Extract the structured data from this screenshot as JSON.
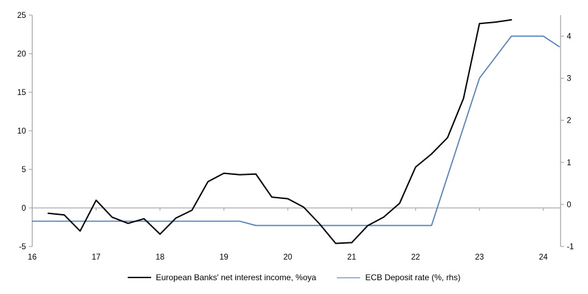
{
  "chart_data": {
    "type": "line",
    "title": "",
    "x_axis": {
      "min": 16,
      "max": 24.27,
      "ticks": [
        16,
        17,
        18,
        19,
        20,
        21,
        22,
        23,
        24
      ]
    },
    "left_axis": {
      "min": -5,
      "max": 25,
      "ticks": [
        -5,
        0,
        5,
        10,
        15,
        20,
        25
      ]
    },
    "right_axis": {
      "min": -1,
      "max": 4.5,
      "ticks": [
        -1,
        0,
        1,
        2,
        3,
        4
      ]
    },
    "grid": {
      "zero_line": true,
      "gridlines": false
    },
    "legend_position": "bottom-center",
    "style": {
      "axis_color": "#a9a9a9",
      "text_color": "#000000",
      "background": "#ffffff"
    },
    "series": [
      {
        "name": "European Banks' net interest income, %oya",
        "axis": "left",
        "color": "#000000",
        "width": 2,
        "points": [
          [
            16.25,
            -0.7
          ],
          [
            16.5,
            -0.9
          ],
          [
            16.75,
            -3.0
          ],
          [
            17.0,
            1.0
          ],
          [
            17.25,
            -1.2
          ],
          [
            17.5,
            -2.0
          ],
          [
            17.75,
            -1.4
          ],
          [
            18.0,
            -3.4
          ],
          [
            18.25,
            -1.3
          ],
          [
            18.5,
            -0.3
          ],
          [
            18.75,
            3.4
          ],
          [
            19.0,
            4.5
          ],
          [
            19.25,
            4.3
          ],
          [
            19.5,
            4.4
          ],
          [
            19.75,
            1.4
          ],
          [
            20.0,
            1.2
          ],
          [
            20.25,
            0.1
          ],
          [
            20.5,
            -2.1
          ],
          [
            20.75,
            -4.6
          ],
          [
            21.0,
            -4.5
          ],
          [
            21.25,
            -2.3
          ],
          [
            21.5,
            -1.2
          ],
          [
            21.75,
            0.6
          ],
          [
            22.0,
            5.3
          ],
          [
            22.25,
            7.0
          ],
          [
            22.5,
            9.1
          ],
          [
            22.75,
            14.2
          ],
          [
            23.0,
            23.9
          ],
          [
            23.25,
            24.1
          ],
          [
            23.5,
            24.4
          ]
        ]
      },
      {
        "name": "ECB Deposit rate (%, rhs)",
        "axis": "right",
        "color": "#4f81bd",
        "width": 1.7,
        "points": [
          [
            16.0,
            -0.4
          ],
          [
            19.25,
            -0.4
          ],
          [
            19.5,
            -0.5
          ],
          [
            22.25,
            -0.5
          ],
          [
            23.0,
            3.0
          ],
          [
            23.5,
            4.0
          ],
          [
            24.0,
            4.0
          ],
          [
            24.25,
            3.75
          ]
        ]
      }
    ]
  }
}
